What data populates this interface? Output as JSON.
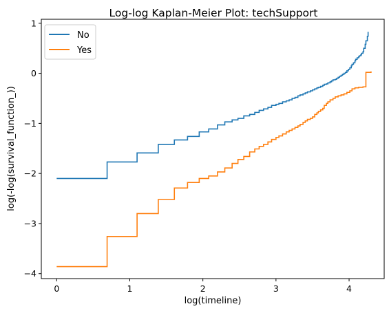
{
  "chart_data": {
    "type": "line",
    "step": true,
    "title": "Log-log Kaplan-Meier Plot: techSupport",
    "xlabel": "log(timeline)",
    "ylabel": "log(-log(survival_function_))",
    "xlim": [
      -0.21,
      4.48
    ],
    "ylim": [
      -4.1,
      1.08
    ],
    "xticks": [
      0,
      1,
      2,
      3,
      4
    ],
    "yticks": [
      -4,
      -3,
      -2,
      -1,
      0,
      1
    ],
    "grid": false,
    "legend_position": "top-left",
    "series": [
      {
        "name": "No",
        "color": "#1f77b4",
        "x": [
          0.0,
          0.69,
          1.1,
          1.39,
          1.61,
          1.79,
          1.95,
          2.08,
          2.2,
          2.3,
          2.4,
          2.48,
          2.56,
          2.64,
          2.71,
          2.77,
          2.83,
          2.89,
          2.94,
          3.0,
          3.04,
          3.09,
          3.14,
          3.18,
          3.22,
          3.26,
          3.3,
          3.33,
          3.37,
          3.4,
          3.43,
          3.47,
          3.5,
          3.53,
          3.56,
          3.58,
          3.61,
          3.64,
          3.66,
          3.69,
          3.71,
          3.74,
          3.76,
          3.78,
          3.81,
          3.83,
          3.85,
          3.87,
          3.89,
          3.91,
          3.93,
          3.95,
          3.97,
          3.99,
          4.01,
          4.03,
          4.04,
          4.06,
          4.08,
          4.09,
          4.11,
          4.13,
          4.14,
          4.16,
          4.17,
          4.19,
          4.2,
          4.22,
          4.23,
          4.25,
          4.26
        ],
        "y": [
          -2.1,
          -1.77,
          -1.59,
          -1.42,
          -1.33,
          -1.26,
          -1.17,
          -1.11,
          -1.03,
          -0.97,
          -0.93,
          -0.9,
          -0.85,
          -0.82,
          -0.78,
          -0.74,
          -0.71,
          -0.68,
          -0.64,
          -0.62,
          -0.6,
          -0.57,
          -0.55,
          -0.53,
          -0.5,
          -0.48,
          -0.45,
          -0.43,
          -0.41,
          -0.39,
          -0.37,
          -0.35,
          -0.33,
          -0.31,
          -0.29,
          -0.28,
          -0.26,
          -0.24,
          -0.22,
          -0.21,
          -0.19,
          -0.17,
          -0.15,
          -0.13,
          -0.12,
          -0.1,
          -0.08,
          -0.06,
          -0.04,
          -0.02,
          0.0,
          0.02,
          0.05,
          0.08,
          0.11,
          0.15,
          0.18,
          0.21,
          0.25,
          0.28,
          0.31,
          0.33,
          0.35,
          0.37,
          0.4,
          0.43,
          0.5,
          0.58,
          0.65,
          0.74,
          0.83
        ]
      },
      {
        "name": "Yes",
        "color": "#ff7f0e",
        "x": [
          0.0,
          0.69,
          1.1,
          1.39,
          1.61,
          1.79,
          1.95,
          2.08,
          2.2,
          2.3,
          2.4,
          2.48,
          2.56,
          2.64,
          2.71,
          2.77,
          2.83,
          2.89,
          2.94,
          3.0,
          3.04,
          3.09,
          3.14,
          3.18,
          3.22,
          3.26,
          3.3,
          3.33,
          3.37,
          3.4,
          3.43,
          3.47,
          3.5,
          3.53,
          3.56,
          3.58,
          3.61,
          3.64,
          3.66,
          3.69,
          3.71,
          3.74,
          3.78,
          3.81,
          3.85,
          3.89,
          3.93,
          3.97,
          4.01,
          4.04,
          4.08,
          4.13,
          4.19,
          4.23,
          4.3
        ],
        "y": [
          -3.86,
          -3.26,
          -2.8,
          -2.52,
          -2.29,
          -2.18,
          -2.1,
          -2.05,
          -1.97,
          -1.89,
          -1.8,
          -1.72,
          -1.66,
          -1.57,
          -1.51,
          -1.46,
          -1.42,
          -1.37,
          -1.32,
          -1.28,
          -1.25,
          -1.21,
          -1.17,
          -1.14,
          -1.11,
          -1.08,
          -1.05,
          -1.02,
          -0.98,
          -0.95,
          -0.92,
          -0.9,
          -0.87,
          -0.82,
          -0.79,
          -0.76,
          -0.73,
          -0.7,
          -0.64,
          -0.6,
          -0.57,
          -0.53,
          -0.5,
          -0.47,
          -0.45,
          -0.43,
          -0.41,
          -0.38,
          -0.35,
          -0.31,
          -0.29,
          -0.28,
          -0.27,
          0.02,
          0.04
        ]
      }
    ]
  }
}
